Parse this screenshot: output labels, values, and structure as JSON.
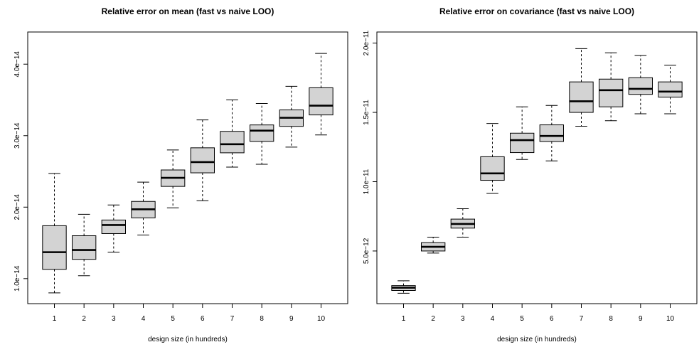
{
  "chart_data": [
    {
      "type": "boxplot",
      "title": "Relative error on mean (fast vs naive LOO)",
      "xlabel": "design size (in hundreds)",
      "ylabel": "",
      "categories": [
        "1",
        "2",
        "3",
        "4",
        "5",
        "6",
        "7",
        "8",
        "9",
        "10"
      ],
      "yticks": [
        1e-14,
        2e-14,
        3e-14,
        4e-14
      ],
      "ytick_labels": [
        "1.0e−14",
        "2.0e−14",
        "3.0e−14",
        "4.0e−14"
      ],
      "ylim": [
        6.5e-15,
        4.45e-14
      ],
      "boxes": [
        {
          "whisker_low": 8e-15,
          "q1": 1.13e-14,
          "median": 1.37e-14,
          "q3": 1.74e-14,
          "whisker_high": 2.47e-14
        },
        {
          "whisker_low": 1.04e-14,
          "q1": 1.27e-14,
          "median": 1.4e-14,
          "q3": 1.6e-14,
          "whisker_high": 1.9e-14
        },
        {
          "whisker_low": 1.37e-14,
          "q1": 1.63e-14,
          "median": 1.75e-14,
          "q3": 1.82e-14,
          "whisker_high": 2.03e-14
        },
        {
          "whisker_low": 1.61e-14,
          "q1": 1.85e-14,
          "median": 1.97e-14,
          "q3": 2.08e-14,
          "whisker_high": 2.35e-14
        },
        {
          "whisker_low": 1.99e-14,
          "q1": 2.29e-14,
          "median": 2.41e-14,
          "q3": 2.52e-14,
          "whisker_high": 2.8e-14
        },
        {
          "whisker_low": 2.09e-14,
          "q1": 2.48e-14,
          "median": 2.63e-14,
          "q3": 2.83e-14,
          "whisker_high": 3.22e-14
        },
        {
          "whisker_low": 2.56e-14,
          "q1": 2.76e-14,
          "median": 2.88e-14,
          "q3": 3.06e-14,
          "whisker_high": 3.5e-14
        },
        {
          "whisker_low": 2.6e-14,
          "q1": 2.92e-14,
          "median": 3.07e-14,
          "q3": 3.15e-14,
          "whisker_high": 3.45e-14
        },
        {
          "whisker_low": 2.84e-14,
          "q1": 3.13e-14,
          "median": 3.25e-14,
          "q3": 3.36e-14,
          "whisker_high": 3.69e-14
        },
        {
          "whisker_low": 3.01e-14,
          "q1": 3.29e-14,
          "median": 3.42e-14,
          "q3": 3.67e-14,
          "whisker_high": 4.15e-14
        }
      ]
    },
    {
      "type": "boxplot",
      "title": "Relative error on covariance (fast vs naive LOO)",
      "xlabel": "design size (in hundreds)",
      "ylabel": "",
      "categories": [
        "1",
        "2",
        "3",
        "4",
        "5",
        "6",
        "7",
        "8",
        "9",
        "10"
      ],
      "yticks": [
        5e-12,
        1e-11,
        1.5e-11,
        2e-11
      ],
      "ytick_labels": [
        "5.0e−12",
        "1.0e−11",
        "1.5e−11",
        "2.0e−11"
      ],
      "ylim": [
        1.2e-12,
        2.08e-11
      ],
      "boxes": [
        {
          "whisker_low": 1.95e-12,
          "q1": 2.15e-12,
          "median": 2.35e-12,
          "q3": 2.5e-12,
          "whisker_high": 2.85e-12
        },
        {
          "whisker_low": 4.85e-12,
          "q1": 5e-12,
          "median": 5.3e-12,
          "q3": 5.6e-12,
          "whisker_high": 6e-12
        },
        {
          "whisker_low": 6e-12,
          "q1": 6.65e-12,
          "median": 6.95e-12,
          "q3": 7.3e-12,
          "whisker_high": 8.05e-12
        },
        {
          "whisker_low": 9.15e-12,
          "q1": 1.01e-11,
          "median": 1.06e-11,
          "q3": 1.18e-11,
          "whisker_high": 1.42e-11
        },
        {
          "whisker_low": 1.16e-11,
          "q1": 1.21e-11,
          "median": 1.3e-11,
          "q3": 1.35e-11,
          "whisker_high": 1.54e-11
        },
        {
          "whisker_low": 1.15e-11,
          "q1": 1.29e-11,
          "median": 1.33e-11,
          "q3": 1.41e-11,
          "whisker_high": 1.55e-11
        },
        {
          "whisker_low": 1.4e-11,
          "q1": 1.5e-11,
          "median": 1.58e-11,
          "q3": 1.72e-11,
          "whisker_high": 1.96e-11
        },
        {
          "whisker_low": 1.44e-11,
          "q1": 1.54e-11,
          "median": 1.66e-11,
          "q3": 1.74e-11,
          "whisker_high": 1.93e-11
        },
        {
          "whisker_low": 1.49e-11,
          "q1": 1.63e-11,
          "median": 1.67e-11,
          "q3": 1.75e-11,
          "whisker_high": 1.91e-11
        },
        {
          "whisker_low": 1.49e-11,
          "q1": 1.61e-11,
          "median": 1.65e-11,
          "q3": 1.72e-11,
          "whisker_high": 1.84e-11
        }
      ]
    }
  ]
}
